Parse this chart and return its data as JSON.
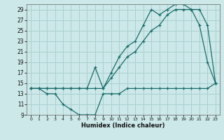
{
  "xlabel": "Humidex (Indice chaleur)",
  "bg_color": "#cce8e8",
  "grid_color": "#aad0d0",
  "line_color": "#1a6b6b",
  "xlim": [
    -0.5,
    23.5
  ],
  "ylim": [
    9,
    30
  ],
  "xticks": [
    0,
    1,
    2,
    3,
    4,
    5,
    6,
    7,
    8,
    9,
    10,
    11,
    12,
    13,
    14,
    15,
    16,
    17,
    18,
    19,
    20,
    21,
    22,
    23
  ],
  "yticks": [
    9,
    11,
    13,
    15,
    17,
    19,
    21,
    23,
    25,
    27,
    29
  ],
  "line_min_x": [
    0,
    1,
    2,
    3,
    4,
    5,
    6,
    7,
    8,
    9,
    10,
    11,
    12,
    13,
    14,
    15,
    16,
    17,
    18,
    19,
    20,
    21,
    22,
    23
  ],
  "line_min_y": [
    14,
    14,
    13,
    13,
    11,
    10,
    9,
    9,
    9,
    13,
    13,
    13,
    14,
    14,
    14,
    14,
    14,
    14,
    14,
    14,
    14,
    14,
    14,
    15
  ],
  "line_mean_x": [
    0,
    1,
    2,
    3,
    4,
    5,
    6,
    7,
    8,
    9,
    10,
    11,
    12,
    13,
    14,
    15,
    16,
    17,
    18,
    19,
    20,
    21,
    22,
    23
  ],
  "line_mean_y": [
    14,
    14,
    14,
    14,
    14,
    14,
    14,
    14,
    14,
    14,
    16,
    18,
    20,
    21,
    23,
    25,
    26,
    28,
    29,
    29,
    29,
    26,
    19,
    15
  ],
  "line_max_x": [
    0,
    1,
    2,
    3,
    4,
    5,
    6,
    7,
    8,
    9,
    10,
    11,
    12,
    13,
    14,
    15,
    16,
    17,
    18,
    19,
    20,
    21,
    22,
    23
  ],
  "line_max_y": [
    14,
    14,
    14,
    14,
    14,
    14,
    14,
    14,
    18,
    14,
    17,
    20,
    22,
    23,
    26,
    29,
    28,
    29,
    30,
    30,
    29,
    29,
    26,
    15
  ]
}
